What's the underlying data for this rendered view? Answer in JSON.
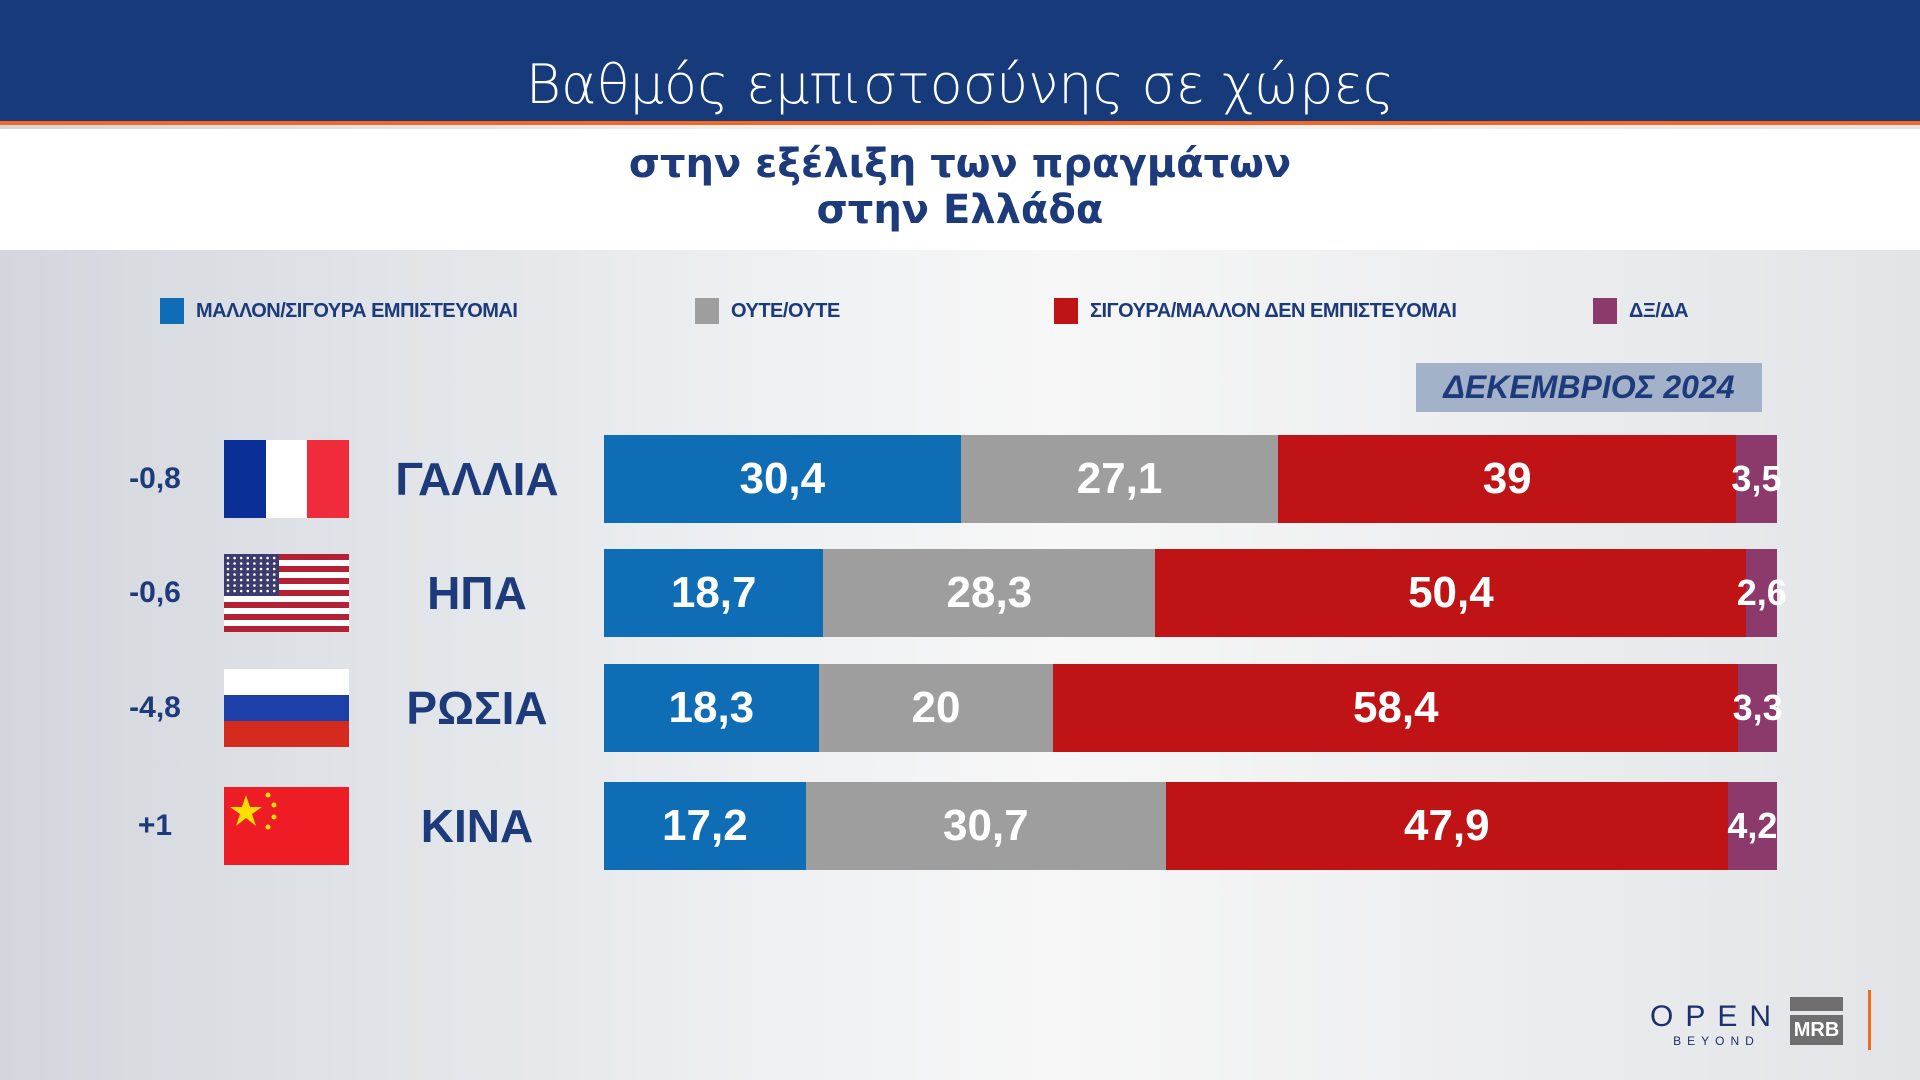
{
  "header": {
    "title": "Βαθμός εμπιστοσύνης σε χώρες",
    "subtitle_1": "στην εξέλιξη των πραγμάτων",
    "subtitle_2": "στην Ελλάδα"
  },
  "chart_data": {
    "type": "bar",
    "orientation": "horizontal",
    "stacked": true,
    "date_label": "ΔΕΚΕΜΒΡΙΟΣ 2024",
    "legend_position": "top",
    "series": [
      {
        "name": "ΜΑΛΛΟΝ/ΣΙΓΟΥΡΑ ΕΜΠΙΣΤΕΥΟΜΑΙ",
        "color": "#0f6db5",
        "values": [
          30.4,
          18.7,
          18.3,
          17.2
        ],
        "labels": [
          "30,4",
          "18,7",
          "18,3",
          "17,2"
        ]
      },
      {
        "name": "ΟΥΤΕ/ΟΥΤΕ",
        "color": "#9e9e9e",
        "values": [
          27.1,
          28.3,
          20,
          30.7
        ],
        "labels": [
          "27,1",
          "28,3",
          "20",
          "30,7"
        ]
      },
      {
        "name": "ΣΙΓΟΥΡΑ/ΜΑΛΛΟΝ ΔΕΝ ΕΜΠΙΣΤΕΥΟΜΑΙ",
        "color": "#c01315",
        "values": [
          39,
          50.4,
          58.4,
          47.9
        ],
        "labels": [
          "39",
          "50,4",
          "58,4",
          "47,9"
        ]
      },
      {
        "name": "ΔΞ/ΔΑ",
        "color": "#8b3a6b",
        "values": [
          3.5,
          2.6,
          3.3,
          4.2
        ],
        "labels": [
          "3,5",
          "2,6",
          "3,3",
          "4,2"
        ]
      }
    ],
    "categories": [
      "ΓΑΛΛΙΑ",
      "ΗΠΑ",
      "ΡΩΣΙΑ",
      "ΚΙΝΑ"
    ],
    "changes": [
      "-0,8",
      "-0,6",
      "-4,8",
      "+1"
    ],
    "flags": [
      "france-flag",
      "usa-flag",
      "russia-flag",
      "china-flag"
    ]
  },
  "footer": {
    "logo_main": "OPEN",
    "logo_sub": "BEYOND",
    "mrb": "MRB"
  }
}
